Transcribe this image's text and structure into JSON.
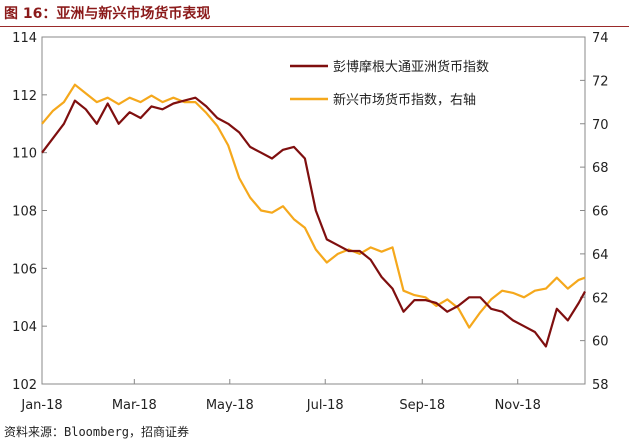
{
  "figure_title": "图 16：亚洲与新兴市场货币表现",
  "source": "资料来源：Bloomberg，招商证券",
  "colors": {
    "title": "#8b1a1a",
    "series1": "#7f0f0f",
    "series2": "#f5a81c"
  },
  "chart_data": {
    "type": "line",
    "x_tick_labels": [
      "Jan-18",
      "Mar-18",
      "May-18",
      "Jul-18",
      "Sep-18",
      "Nov-18"
    ],
    "x_range": [
      "2018-01-01",
      "2018-12-14"
    ],
    "left_axis": {
      "ylim": [
        102,
        114
      ],
      "ticks": [
        102,
        104,
        106,
        108,
        110,
        112,
        114
      ]
    },
    "right_axis": {
      "ylim": [
        58,
        74
      ],
      "ticks": [
        58,
        60,
        62,
        64,
        66,
        68,
        70,
        72,
        74
      ]
    },
    "legend_position": "top-right",
    "grid": false,
    "series": [
      {
        "name": "彭博摩根大通亚洲货币指数",
        "axis": "left",
        "x": [
          "2018-01-01",
          "2018-01-08",
          "2018-01-15",
          "2018-01-22",
          "2018-01-29",
          "2018-02-05",
          "2018-02-12",
          "2018-02-19",
          "2018-02-26",
          "2018-03-05",
          "2018-03-12",
          "2018-03-19",
          "2018-03-26",
          "2018-04-02",
          "2018-04-09",
          "2018-04-16",
          "2018-04-23",
          "2018-04-30",
          "2018-05-07",
          "2018-05-14",
          "2018-05-21",
          "2018-05-28",
          "2018-06-04",
          "2018-06-11",
          "2018-06-18",
          "2018-06-25",
          "2018-07-02",
          "2018-07-09",
          "2018-07-16",
          "2018-07-23",
          "2018-07-30",
          "2018-08-06",
          "2018-08-13",
          "2018-08-20",
          "2018-08-27",
          "2018-09-03",
          "2018-09-10",
          "2018-09-17",
          "2018-09-24",
          "2018-10-01",
          "2018-10-08",
          "2018-10-15",
          "2018-10-22",
          "2018-10-29",
          "2018-11-05",
          "2018-11-12",
          "2018-11-19",
          "2018-11-26",
          "2018-12-03",
          "2018-12-10",
          "2018-12-14"
        ],
        "values": [
          110.0,
          110.5,
          111.0,
          111.8,
          111.5,
          111.0,
          111.7,
          111.0,
          111.4,
          111.2,
          111.6,
          111.5,
          111.7,
          111.8,
          111.9,
          111.6,
          111.2,
          111.0,
          110.7,
          110.2,
          110.0,
          109.8,
          110.1,
          110.2,
          109.8,
          108.0,
          107.0,
          106.8,
          106.6,
          106.6,
          106.3,
          105.7,
          105.3,
          104.5,
          104.9,
          104.9,
          104.8,
          104.5,
          104.7,
          105.0,
          105.0,
          104.6,
          104.5,
          104.2,
          104.0,
          103.8,
          103.3,
          104.6,
          104.2,
          104.8,
          105.2
        ]
      },
      {
        "name": "新兴市场货币指数，右轴",
        "axis": "right",
        "x": [
          "2018-01-01",
          "2018-01-08",
          "2018-01-15",
          "2018-01-22",
          "2018-01-29",
          "2018-02-05",
          "2018-02-12",
          "2018-02-19",
          "2018-02-26",
          "2018-03-05",
          "2018-03-12",
          "2018-03-19",
          "2018-03-26",
          "2018-04-02",
          "2018-04-09",
          "2018-04-16",
          "2018-04-23",
          "2018-04-30",
          "2018-05-07",
          "2018-05-14",
          "2018-05-21",
          "2018-05-28",
          "2018-06-04",
          "2018-06-11",
          "2018-06-18",
          "2018-06-25",
          "2018-07-02",
          "2018-07-09",
          "2018-07-16",
          "2018-07-23",
          "2018-07-30",
          "2018-08-06",
          "2018-08-13",
          "2018-08-20",
          "2018-08-27",
          "2018-09-03",
          "2018-09-10",
          "2018-09-17",
          "2018-09-24",
          "2018-10-01",
          "2018-10-08",
          "2018-10-15",
          "2018-10-22",
          "2018-10-29",
          "2018-11-05",
          "2018-11-12",
          "2018-11-19",
          "2018-11-26",
          "2018-12-03",
          "2018-12-10",
          "2018-12-14"
        ],
        "values": [
          70.0,
          70.6,
          71.0,
          71.8,
          71.4,
          71.0,
          71.2,
          70.9,
          71.2,
          71.0,
          71.3,
          71.0,
          71.2,
          71.0,
          71.0,
          70.5,
          69.9,
          69.0,
          67.5,
          66.6,
          66.0,
          65.9,
          66.2,
          65.6,
          65.2,
          64.2,
          63.6,
          64.0,
          64.2,
          64.0,
          64.3,
          64.1,
          64.3,
          62.3,
          62.1,
          62.0,
          61.6,
          61.9,
          61.5,
          60.6,
          61.3,
          61.9,
          62.3,
          62.2,
          62.0,
          62.3,
          62.4,
          62.9,
          62.4,
          62.8,
          62.9
        ]
      }
    ]
  }
}
